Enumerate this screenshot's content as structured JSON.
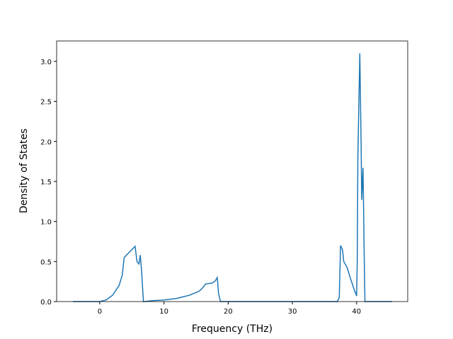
{
  "chart_data": {
    "type": "line",
    "x_label": "Frequency (THz)",
    "y_label": "Density of States",
    "x": [
      -4.2,
      0,
      1,
      2,
      3,
      3.5,
      3.8,
      5.5,
      5.8,
      6.1,
      6.3,
      6.5,
      6.8,
      7,
      8,
      10,
      12,
      14,
      15.5,
      16,
      16.5,
      17.5,
      18,
      18.3,
      18.5,
      18.8,
      20,
      30,
      37,
      37.3,
      37.5,
      37.8,
      38,
      38.5,
      39,
      39.5,
      40,
      40.1,
      40.2,
      40.5,
      40.7,
      40.8,
      41,
      41.2,
      41.3,
      45.5
    ],
    "series": [
      {
        "color": "#1f77b4",
        "values": [
          0,
          0,
          0.02,
          0.08,
          0.2,
          0.33,
          0.55,
          0.69,
          0.5,
          0.47,
          0.58,
          0.4,
          0,
          0,
          0.01,
          0.02,
          0.04,
          0.08,
          0.13,
          0.17,
          0.22,
          0.23,
          0.26,
          0.3,
          0.1,
          0,
          0,
          0,
          0,
          0.05,
          0.7,
          0.65,
          0.5,
          0.43,
          0.3,
          0.18,
          0.07,
          0.5,
          1.8,
          3.1,
          2.0,
          1.27,
          1.67,
          0.5,
          0,
          0
        ]
      }
    ],
    "xlim": [
      -6.72,
      47.96
    ],
    "ylim": [
      0,
      3.255
    ],
    "xticks": [
      0,
      10,
      20,
      30,
      40
    ],
    "yticks": [
      {
        "value": 0,
        "label": "0.0"
      },
      0.5,
      {
        "value": 1,
        "label": "1.0"
      },
      1.5,
      {
        "value": 2,
        "label": "2.0"
      },
      2.5,
      {
        "value": 3,
        "label": "3.0"
      }
    ]
  }
}
